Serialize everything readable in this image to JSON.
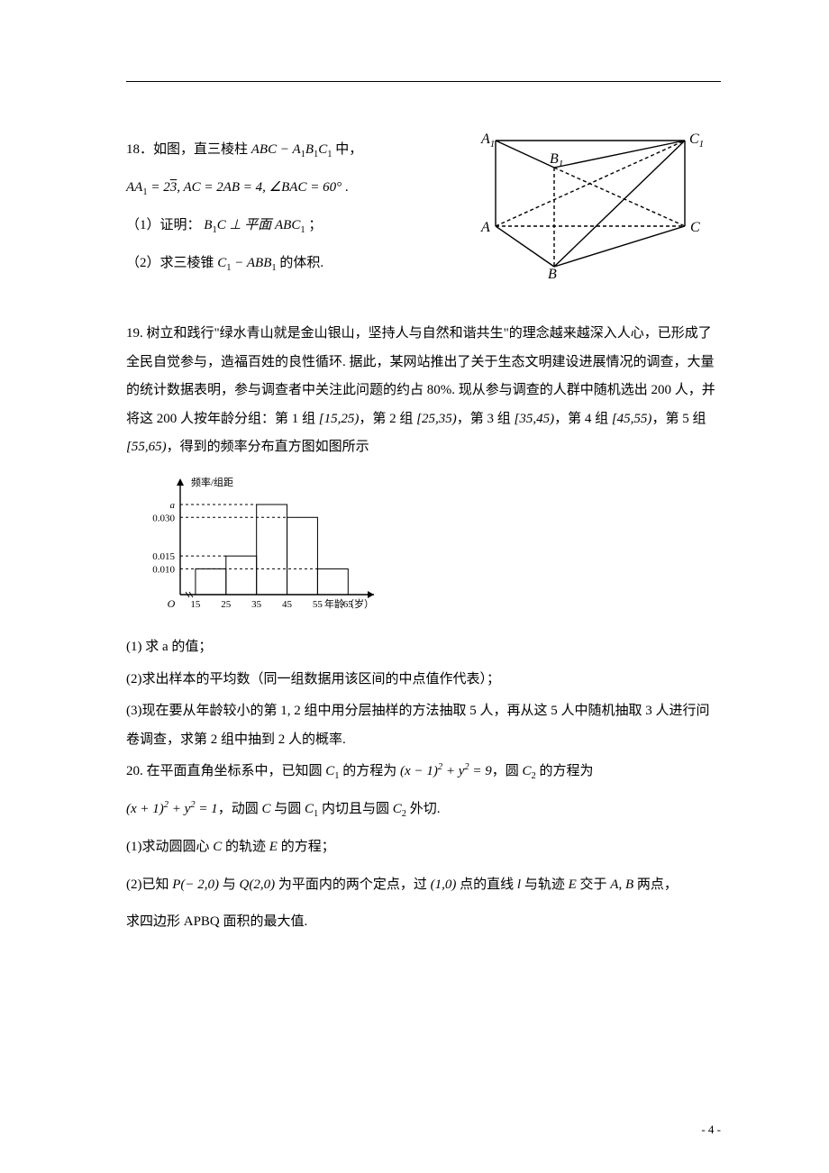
{
  "page_number": "- 4 -",
  "q18": {
    "intro_a": "18．如图，直三棱柱 ",
    "prism": "ABC − A",
    "prism_sub1": "1",
    "prism_b": "B",
    "prism_sub2": "1",
    "prism_c": "C",
    "prism_sub3": "1",
    "intro_b": " 中，",
    "eq_aa1": "AA",
    "eq_aa1_sub": "1",
    "eq_eq1": " = 2",
    "eq_sqrt3": "3",
    "eq_comma": ", ",
    "eq_ac": "AC = 2AB = 4, ∠BAC = 60°",
    "eq_dot": " .",
    "p1_a": "（1）证明：",
    "p1_b1c": "B",
    "p1_b1c_sub": "1",
    "p1_c": "C ⊥ 平面 ABC",
    "p1_c_sub": "1",
    "p1_semi": "；",
    "p2_a": "（2）求三棱锥 ",
    "p2_c1": "C",
    "p2_c1_sub": "1",
    "p2_b": " − ABB",
    "p2_b_sub": "1",
    "p2_c": " 的体积.",
    "fig": {
      "labels": {
        "A1": "A",
        "A1s": "1",
        "B1": "B",
        "B1s": "1",
        "C1": "C",
        "C1s": "1",
        "A": "A",
        "B": "B",
        "C": "C"
      },
      "stroke": "#000000",
      "dash": "4,3"
    }
  },
  "q19": {
    "para": "19. 树立和践行\"绿水青山就是金山银山，坚持人与自然和谐共生\"的理念越来越深入人心，已形成了全民自觉参与，造福百姓的良性循环. 据此，某网站推出了关于生态文明建设进展情况的调查，大量的统计数据表明，参与调查者中关注此问题的约占 80%. 现从参与调查的人群中随机选出 200 人，并将这 200 人按年龄分组：第 1 组 ",
    "g1": "[15,25)",
    "t1": "，第 2 组 ",
    "g2": "[25,35)",
    "t2": "，第 3 组 ",
    "g3": "[35,45)",
    "t3": "，第 4 组 ",
    "g4": "[45,55)",
    "t4": "，第 5 组 ",
    "g5": "[55,65)",
    "t5": "，得到的频率分布直方图如图所示",
    "hist": {
      "ylabel": "频率/组距",
      "xlabel": "年龄（岁）",
      "a_label": "a",
      "yticks": [
        "0.030",
        "0.015",
        "0.010"
      ],
      "xticks": [
        "15",
        "25",
        "35",
        "45",
        "55",
        "65"
      ],
      "origin": "O",
      "bars": [
        {
          "x0": 15,
          "x1": 25,
          "h": 0.01
        },
        {
          "x0": 25,
          "x1": 35,
          "h": 0.015
        },
        {
          "x0": 35,
          "x1": 45,
          "h": 0.035
        },
        {
          "x0": 45,
          "x1": 55,
          "h": 0.03
        },
        {
          "x0": 55,
          "x1": 65,
          "h": 0.01
        }
      ],
      "dashed_levels": [
        0.035,
        0.03,
        0.015,
        0.01
      ],
      "stroke": "#000000",
      "axis_width": 1.4,
      "bar_width": 1,
      "xlim": [
        10,
        72
      ],
      "ylim": [
        0,
        0.042
      ]
    },
    "p1": "(1) 求 a 的值；",
    "p2": "(2)求出样本的平均数（同一组数据用该区间的中点值作代表）；",
    "p3": "(3)现在要从年龄较小的第 1, 2 组中用分层抽样的方法抽取 5 人，再从这 5 人中随机抽取 3 人进行问卷调查，求第 2 组中抽到 2 人的概率."
  },
  "q20": {
    "l1a": "20. 在平面直角坐标系中，已知圆 ",
    "c1": "C",
    "c1s": "1",
    "l1b": " 的方程为 ",
    "eq1": "(x − 1)",
    "eq1sup": "2",
    "eq1b": " + y",
    "eq1bsup": "2",
    "eq1c": " = 9",
    "l1c": "，圆 ",
    "c2": "C",
    "c2s": "2",
    "l1d": " 的方程为",
    "eq2a": "(x + 1)",
    "eq2asup": "2",
    "eq2b": " + y",
    "eq2bsup": "2",
    "eq2c": " = 1",
    "l2a": "，动圆 ",
    "cc": "C",
    "l2b": " 与圆 ",
    "l2c": " 内切且与圆 ",
    "l2d": " 外切.",
    "p1a": "(1)求动圆圆心 ",
    "p1b": " 的轨迹 ",
    "pE": "E",
    "p1c": " 的方程；",
    "p2a": "(2)已知 ",
    "pP": "P(− 2,0)",
    "p2b": " 与 ",
    "pQ": "Q(2,0)",
    "p2c": " 为平面内的两个定点，过 ",
    "p10": "(1,0)",
    "p2d": " 点的直线 ",
    "pl": "l",
    "p2e": " 与轨迹 ",
    "p2f": " 交于 ",
    "pAB": "A, B",
    "p2g": " 两点，",
    "p3": "求四边形 APBQ 面积的最大值."
  }
}
